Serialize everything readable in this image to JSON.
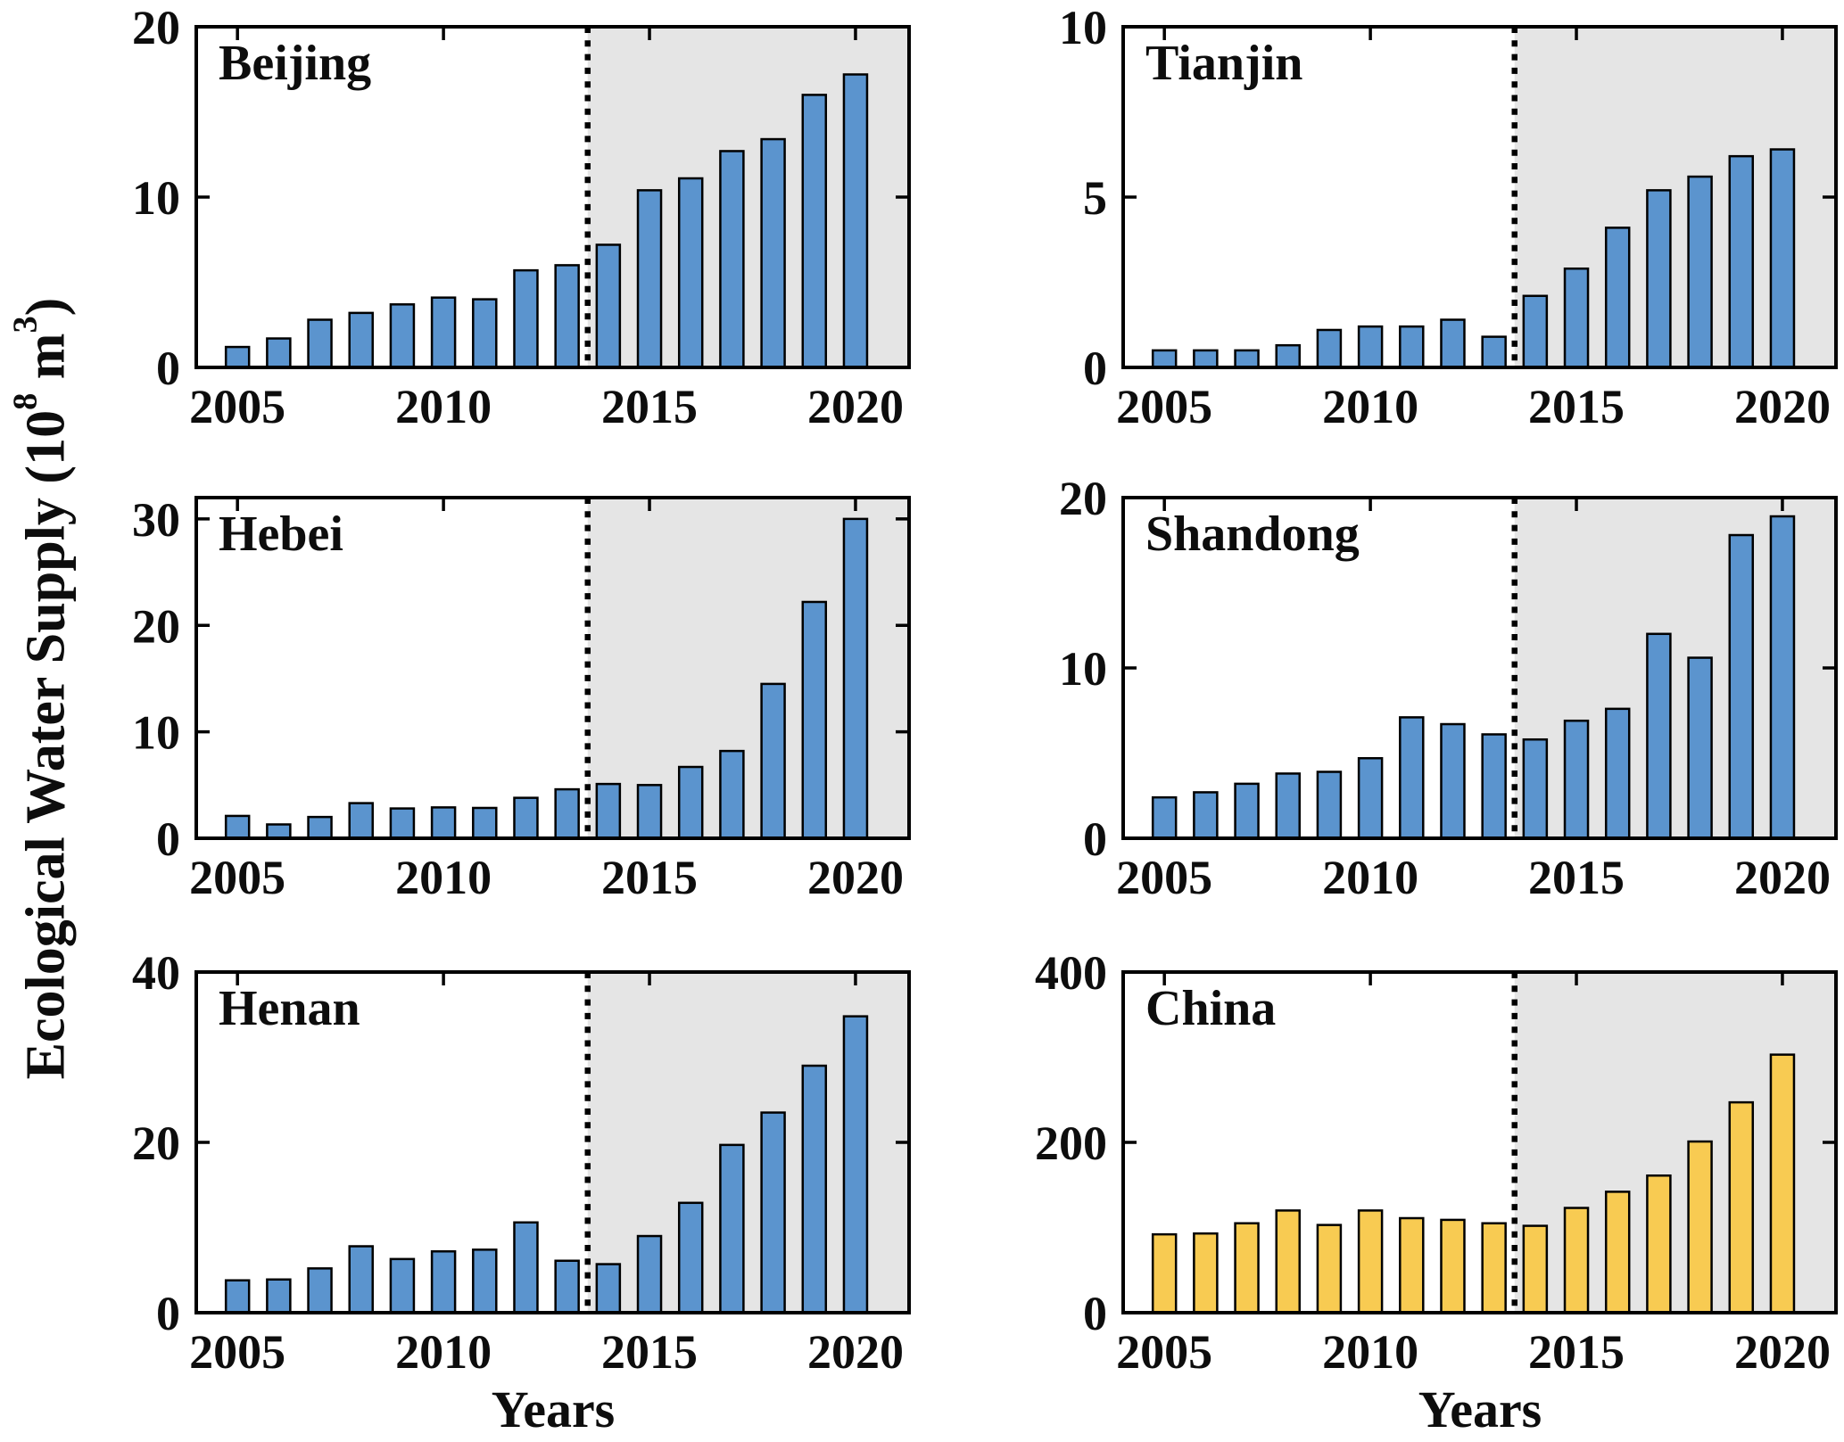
{
  "figure": {
    "ylabel_parts": {
      "pre": "Ecological Water Supply (10",
      "sup_a": "8",
      "mid": " m",
      "sup_b": "3",
      "post": ")"
    },
    "ylabel_text": "Ecological Water Supply (10^8 m^3)",
    "xlabel": "Years",
    "colors": {
      "bar_blue": "#5B94CE",
      "bar_yellow": "#F8CB52",
      "bar_edge": "#000000",
      "shade": "#E5E5E5",
      "dashed_line": "#000000",
      "axis": "#000000"
    },
    "dashed_line_x": 2013.5
  },
  "chart_data": [
    {
      "type": "bar",
      "title": "Beijing",
      "x": [
        2005,
        2006,
        2007,
        2008,
        2009,
        2010,
        2011,
        2012,
        2013,
        2014,
        2015,
        2016,
        2017,
        2018,
        2019,
        2020
      ],
      "values": [
        1.2,
        1.7,
        2.8,
        3.2,
        3.7,
        4.1,
        4.0,
        5.7,
        6.0,
        7.2,
        10.4,
        11.1,
        12.7,
        13.4,
        16.0,
        17.2
      ],
      "xlim": [
        2004,
        2021.3
      ],
      "ylim": [
        0,
        20
      ],
      "yticks": [
        0,
        10,
        20
      ],
      "xticks": [
        2005,
        2010,
        2015,
        2020
      ],
      "bar_color": "#5B94CE",
      "dashed_x": 2013.5,
      "shaded_from": 2013.5,
      "grid": false,
      "legend": null
    },
    {
      "type": "bar",
      "title": "Tianjin",
      "x": [
        2005,
        2006,
        2007,
        2008,
        2009,
        2010,
        2011,
        2012,
        2013,
        2014,
        2015,
        2016,
        2017,
        2018,
        2019,
        2020
      ],
      "values": [
        0.5,
        0.5,
        0.5,
        0.65,
        1.1,
        1.2,
        1.2,
        1.4,
        0.9,
        2.1,
        2.9,
        4.1,
        5.2,
        5.6,
        6.2,
        6.4
      ],
      "xlim": [
        2004,
        2021.3
      ],
      "ylim": [
        0,
        10
      ],
      "yticks": [
        0,
        5,
        10
      ],
      "xticks": [
        2005,
        2010,
        2015,
        2020
      ],
      "bar_color": "#5B94CE",
      "dashed_x": 2013.5,
      "shaded_from": 2013.5,
      "grid": false,
      "legend": null
    },
    {
      "type": "bar",
      "title": "Hebei",
      "x": [
        2005,
        2006,
        2007,
        2008,
        2009,
        2010,
        2011,
        2012,
        2013,
        2014,
        2015,
        2016,
        2017,
        2018,
        2019,
        2020
      ],
      "values": [
        2.1,
        1.3,
        2.0,
        3.3,
        2.8,
        2.9,
        2.85,
        3.8,
        4.6,
        5.1,
        5.0,
        6.7,
        8.2,
        14.5,
        22.2,
        30.0
      ],
      "xlim": [
        2004,
        2021.3
      ],
      "ylim": [
        0,
        32
      ],
      "yticks": [
        0,
        10,
        20,
        30
      ],
      "xticks": [
        2005,
        2010,
        2015,
        2020
      ],
      "bar_color": "#5B94CE",
      "dashed_x": 2013.5,
      "shaded_from": 2013.5,
      "grid": false,
      "legend": null
    },
    {
      "type": "bar",
      "title": "Shandong",
      "x": [
        2005,
        2006,
        2007,
        2008,
        2009,
        2010,
        2011,
        2012,
        2013,
        2014,
        2015,
        2016,
        2017,
        2018,
        2019,
        2020
      ],
      "values": [
        2.4,
        2.7,
        3.2,
        3.8,
        3.9,
        4.7,
        7.1,
        6.7,
        6.1,
        5.8,
        6.9,
        7.6,
        12.0,
        10.6,
        17.8,
        18.9
      ],
      "xlim": [
        2004,
        2021.3
      ],
      "ylim": [
        0,
        20
      ],
      "yticks": [
        0,
        10,
        20
      ],
      "xticks": [
        2005,
        2010,
        2015,
        2020
      ],
      "bar_color": "#5B94CE",
      "dashed_x": 2013.5,
      "shaded_from": 2013.5,
      "grid": false,
      "legend": null
    },
    {
      "type": "bar",
      "title": "Henan",
      "x": [
        2005,
        2006,
        2007,
        2008,
        2009,
        2010,
        2011,
        2012,
        2013,
        2014,
        2015,
        2016,
        2017,
        2018,
        2019,
        2020
      ],
      "values": [
        3.8,
        3.9,
        5.2,
        7.8,
        6.3,
        7.2,
        7.4,
        10.6,
        6.1,
        5.7,
        9.0,
        12.9,
        19.7,
        23.5,
        29.0,
        34.8
      ],
      "xlim": [
        2004,
        2021.3
      ],
      "ylim": [
        0,
        40
      ],
      "yticks": [
        0,
        20,
        40
      ],
      "xticks": [
        2005,
        2010,
        2015,
        2020
      ],
      "bar_color": "#5B94CE",
      "dashed_x": 2013.5,
      "shaded_from": 2013.5,
      "grid": false,
      "legend": null
    },
    {
      "type": "bar",
      "title": "China",
      "x": [
        2005,
        2006,
        2007,
        2008,
        2009,
        2010,
        2011,
        2012,
        2013,
        2014,
        2015,
        2016,
        2017,
        2018,
        2019,
        2020
      ],
      "values": [
        92,
        93,
        105,
        120,
        103,
        120,
        111,
        109,
        105,
        102,
        123,
        142,
        161,
        201,
        247,
        303
      ],
      "xlim": [
        2004,
        2021.3
      ],
      "ylim": [
        0,
        400
      ],
      "yticks": [
        0,
        200,
        400
      ],
      "xticks": [
        2005,
        2010,
        2015,
        2020
      ],
      "bar_color": "#F8CB52",
      "dashed_x": 2013.5,
      "shaded_from": 2013.5,
      "grid": false,
      "legend": null
    }
  ]
}
